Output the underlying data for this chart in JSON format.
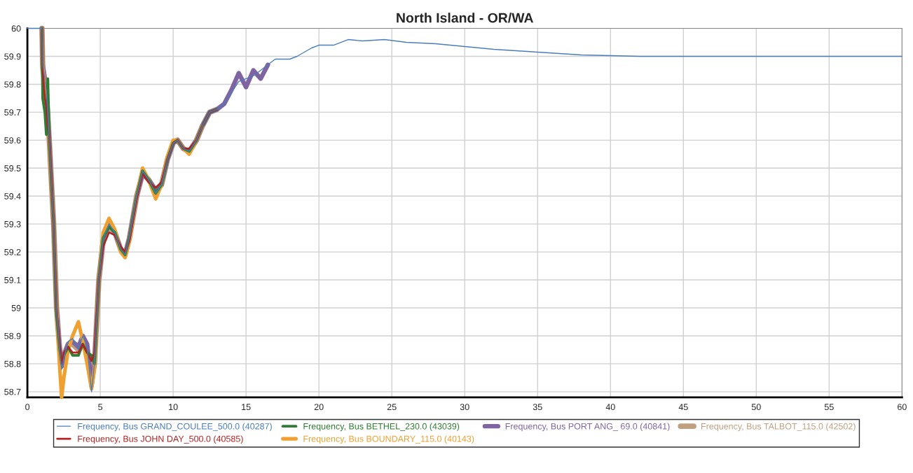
{
  "chart_data": {
    "type": "line",
    "title": "North Island - OR/WA",
    "x": [
      0,
      1,
      1.05,
      1.2,
      1.3,
      1.4,
      1.5,
      1.8,
      2,
      2.2,
      2.35,
      2.5,
      2.8,
      3.1,
      3.5,
      3.8,
      4.1,
      4.4,
      4.6,
      4.9,
      5.2,
      5.6,
      6,
      6.4,
      6.7,
      7,
      7.5,
      7.9,
      8.3,
      8.8,
      9.2,
      9.6,
      10,
      10.3,
      10.7,
      11.1,
      11.6,
      12,
      12.5,
      13,
      13.5,
      14,
      14.5,
      15,
      15.5,
      16,
      16.5,
      17,
      18,
      18.5,
      19.5,
      20,
      21,
      22,
      23,
      24.5,
      26,
      28,
      30,
      32,
      35,
      38,
      42,
      45,
      50,
      55,
      60
    ],
    "series": [
      {
        "name": "Frequency, Bus GRAND_COULEE_500.0 (40287)",
        "color": "#4a7ebb",
        "values": [
          60,
          60,
          59.87,
          59.82,
          59.78,
          59.7,
          59.6,
          59.3,
          59.0,
          58.85,
          58.78,
          58.82,
          58.88,
          58.89,
          58.85,
          58.9,
          58.86,
          58.7,
          58.8,
          59.1,
          59.25,
          59.3,
          59.27,
          59.21,
          59.19,
          59.25,
          59.4,
          59.49,
          59.46,
          59.41,
          59.44,
          59.53,
          59.59,
          59.6,
          59.57,
          59.56,
          59.6,
          59.65,
          59.7,
          59.71,
          59.73,
          59.77,
          59.81,
          59.82,
          59.83,
          59.85,
          59.87,
          59.89,
          59.89,
          59.9,
          59.93,
          59.94,
          59.94,
          59.96,
          59.955,
          59.96,
          59.95,
          59.945,
          59.935,
          59.925,
          59.915,
          59.905,
          59.9,
          59.9,
          59.9,
          59.9,
          59.9
        ]
      },
      {
        "name": "Frequency, Bus JOHN DAY_500.0 (40585)",
        "color": "#b22222",
        "values": [
          null,
          60,
          59.85,
          59.75,
          59.72,
          59.65,
          59.62,
          59.3,
          59.0,
          58.87,
          58.8,
          58.84,
          58.86,
          58.84,
          58.84,
          58.87,
          58.84,
          58.81,
          58.84,
          59.1,
          59.22,
          59.27,
          59.26,
          59.22,
          59.2,
          59.24,
          59.39,
          59.48,
          59.45,
          59.43,
          59.45,
          59.53,
          59.59,
          59.6,
          59.57,
          59.57,
          59.6,
          59.65,
          59.7,
          59.71,
          null,
          null,
          null,
          null,
          null,
          null,
          null,
          null,
          null,
          null,
          null,
          null,
          null,
          null,
          null,
          null,
          null,
          null,
          null,
          null,
          null,
          null,
          null,
          null,
          null,
          null,
          null
        ]
      },
      {
        "name": "Frequency, Bus BETHEL_230.0 (43039)",
        "color": "#2e7d32",
        "values": [
          null,
          60,
          59.75,
          59.7,
          59.62,
          59.82,
          59.6,
          59.3,
          58.98,
          58.86,
          58.8,
          58.83,
          58.86,
          58.83,
          58.83,
          58.87,
          58.84,
          58.83,
          58.8,
          59.1,
          59.25,
          59.29,
          59.27,
          59.21,
          59.19,
          59.25,
          59.4,
          59.49,
          59.46,
          59.41,
          59.44,
          59.53,
          59.59,
          59.6,
          59.57,
          59.56,
          59.6,
          59.65,
          59.7,
          59.71,
          null,
          null,
          null,
          null,
          null,
          null,
          null,
          null,
          null,
          null,
          null,
          null,
          null,
          null,
          null,
          null,
          null,
          null,
          null,
          null,
          null,
          null,
          null,
          null,
          null,
          null,
          null
        ]
      },
      {
        "name": "Frequency, Bus BOUNDARY_115.0 (40143)",
        "color": "#f0a030",
        "values": [
          null,
          60,
          59.86,
          59.8,
          59.78,
          59.7,
          59.58,
          59.3,
          59.0,
          58.8,
          58.68,
          58.75,
          58.85,
          58.9,
          58.95,
          58.88,
          58.8,
          58.71,
          58.78,
          59.1,
          59.27,
          59.32,
          59.28,
          59.2,
          59.18,
          59.24,
          59.4,
          59.5,
          59.46,
          59.39,
          59.44,
          59.54,
          59.6,
          59.6,
          59.57,
          59.55,
          59.6,
          59.65,
          null,
          null,
          null,
          null,
          null,
          null,
          null,
          null,
          null,
          null,
          null,
          null,
          null,
          null,
          null,
          null,
          null,
          null,
          null,
          null,
          null,
          null,
          null,
          null,
          null,
          null,
          null,
          null,
          null
        ]
      },
      {
        "name": "Frequency, Bus PORT ANG_ 69.0 (40841)",
        "color": "#8064a2",
        "values": [
          null,
          60,
          59.87,
          59.82,
          59.78,
          59.7,
          59.6,
          59.3,
          59.0,
          58.86,
          58.79,
          58.83,
          58.87,
          58.88,
          58.86,
          58.9,
          58.87,
          58.72,
          58.8,
          59.1,
          59.25,
          59.3,
          59.27,
          59.21,
          59.19,
          59.25,
          59.4,
          59.48,
          59.46,
          59.42,
          59.44,
          59.53,
          59.59,
          59.6,
          59.57,
          59.56,
          59.6,
          59.65,
          59.7,
          59.71,
          59.73,
          59.78,
          59.84,
          59.79,
          59.85,
          59.82,
          59.87,
          null,
          null,
          null,
          null,
          null,
          null,
          null,
          null,
          null,
          null,
          null,
          null,
          null,
          null,
          null,
          null,
          null,
          null,
          null,
          null
        ]
      },
      {
        "name": "Frequency, Bus TALBOT_115.0 (42502)",
        "color": "#c0a080",
        "values": [
          null,
          60,
          59.86,
          59.8,
          59.77,
          59.69,
          59.6,
          59.3,
          59.0,
          58.86,
          58.8,
          58.83,
          58.87,
          58.87,
          58.85,
          58.89,
          58.85,
          58.75,
          58.8,
          59.1,
          59.24,
          59.29,
          59.27,
          59.21,
          59.19,
          59.25,
          59.4,
          59.48,
          59.46,
          59.42,
          59.44,
          59.53,
          59.59,
          59.6,
          59.57,
          59.56,
          59.6,
          59.65,
          59.7,
          59.71,
          null,
          null,
          null,
          null,
          null,
          null,
          null,
          null,
          null,
          null,
          null,
          null,
          null,
          null,
          null,
          null,
          null,
          null,
          null,
          null,
          null,
          null,
          null,
          null,
          null,
          null,
          null
        ]
      }
    ],
    "xlim": [
      0,
      60
    ],
    "xticks": [
      0,
      5,
      10,
      15,
      20,
      25,
      30,
      35,
      40,
      45,
      50,
      55,
      60
    ],
    "ylim": [
      58.68,
      60.0
    ],
    "yticks": [
      58.7,
      58.8,
      58.9,
      59,
      59.1,
      59.2,
      59.3,
      59.4,
      59.5,
      59.6,
      59.7,
      59.8,
      59.9,
      60
    ],
    "grid": true,
    "legend": "bottom",
    "marker": "none",
    "line_style": "solid"
  }
}
